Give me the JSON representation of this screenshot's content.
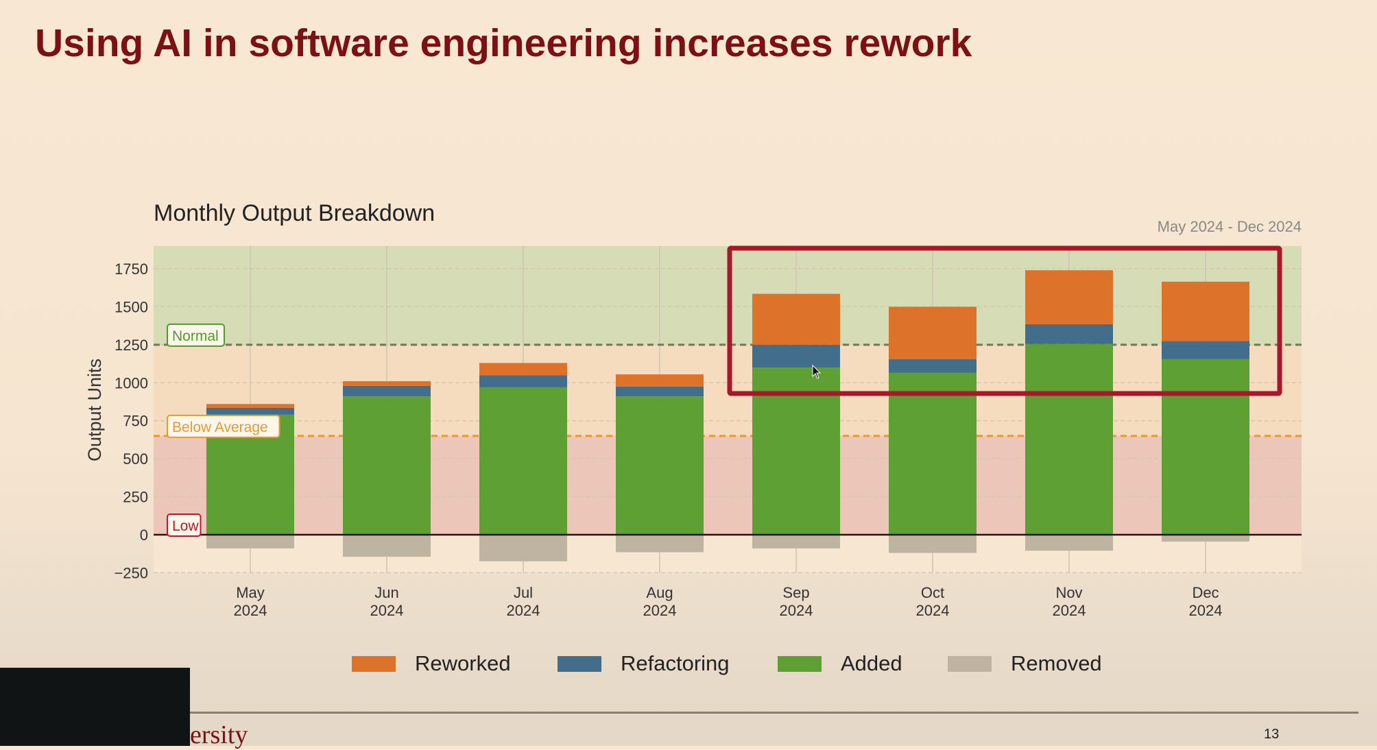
{
  "slide": {
    "title": "Using AI in software engineering increases rework",
    "footer_text": "ersity",
    "page_number": "13"
  },
  "chart_data": {
    "type": "bar",
    "stacked": true,
    "title": "Monthly Output Breakdown",
    "subtitle": "May 2024 - Dec 2024",
    "ylabel": "Output Units",
    "xlabel": "",
    "ylim": [
      -250,
      1900
    ],
    "yticks": [
      -250,
      0,
      250,
      500,
      750,
      1000,
      1250,
      1500,
      1750
    ],
    "grid": true,
    "legend_position": "bottom",
    "categories": [
      [
        "May",
        "2024"
      ],
      [
        "Jun",
        "2024"
      ],
      [
        "Jul",
        "2024"
      ],
      [
        "Aug",
        "2024"
      ],
      [
        "Sep",
        "2024"
      ],
      [
        "Oct",
        "2024"
      ],
      [
        "Nov",
        "2024"
      ],
      [
        "Dec",
        "2024"
      ]
    ],
    "series": [
      {
        "name": "Added",
        "color": "#5fa035",
        "values": [
          790,
          910,
          970,
          910,
          1100,
          1065,
          1255,
          1155
        ]
      },
      {
        "name": "Refactoring",
        "color": "#426e8c",
        "values": [
          45,
          70,
          80,
          65,
          150,
          90,
          130,
          120
        ]
      },
      {
        "name": "Reworked",
        "color": "#dd722b",
        "values": [
          25,
          30,
          80,
          80,
          335,
          345,
          355,
          390
        ]
      },
      {
        "name": "Removed",
        "color": "#bfb4a2",
        "values": [
          -90,
          -145,
          -175,
          -115,
          -90,
          -120,
          -105,
          -45
        ]
      }
    ],
    "legend_order": [
      "Reworked",
      "Refactoring",
      "Added",
      "Removed"
    ],
    "bands": [
      {
        "label": "Normal",
        "from": 1250,
        "to": 1900,
        "color": "#d6dcb6",
        "line_color": "#6b7a58",
        "label_color": "#4f9a2f"
      },
      {
        "label": "Below Average",
        "from": 650,
        "to": 1250,
        "color": "#f5dcbf",
        "line_color": "#e39a35",
        "label_color": "#e39a35"
      },
      {
        "label": "Low",
        "from": 0,
        "to": 650,
        "color": "#ecc6b8",
        "line_color": "#3a1a1a",
        "label_color": "#c4142a"
      }
    ],
    "highlight": {
      "from_category": "Sep",
      "to_category": "Dec",
      "color": "#a8182a"
    }
  }
}
